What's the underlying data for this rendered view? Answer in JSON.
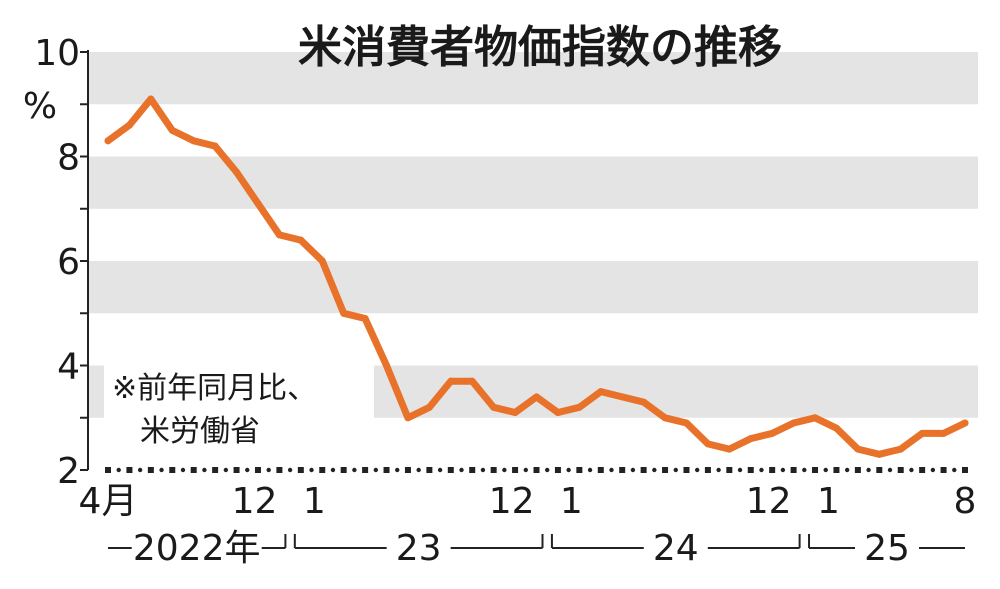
{
  "chart_data": {
    "type": "line",
    "title": "米消費者物価指数の推移",
    "ylabel": "%",
    "note_lines": [
      "※前年同月比、",
      "米労働省"
    ],
    "ylim": [
      2,
      10
    ],
    "y_ticks": [
      2,
      4,
      6,
      8,
      10
    ],
    "y_tick_labels": [
      "2",
      "4",
      "6",
      "8",
      "10"
    ],
    "grid": "shaded horizontal bands",
    "line_color": "#e8722a",
    "band_color": "#e4e4e4",
    "x_tick_labels": [
      {
        "text": "4月",
        "index": 0
      },
      {
        "text": "12",
        "index": 8
      },
      {
        "text": "1",
        "index": 9
      },
      {
        "text": "12",
        "index": 20
      },
      {
        "text": "1",
        "index": 21
      },
      {
        "text": "12",
        "index": 32
      },
      {
        "text": "1",
        "index": 33
      },
      {
        "text": "8",
        "index": 40
      }
    ],
    "year_labels": [
      {
        "text": "2022年",
        "start": 0,
        "end": 8
      },
      {
        "text": "23",
        "start": 9,
        "end": 20
      },
      {
        "text": "24",
        "start": 21,
        "end": 32
      },
      {
        "text": "25",
        "start": 33,
        "end": 40
      }
    ],
    "x": [
      "2022-04",
      "2022-05",
      "2022-06",
      "2022-07",
      "2022-08",
      "2022-09",
      "2022-10",
      "2022-11",
      "2022-12",
      "2023-01",
      "2023-02",
      "2023-03",
      "2023-04",
      "2023-05",
      "2023-06",
      "2023-07",
      "2023-08",
      "2023-09",
      "2023-10",
      "2023-11",
      "2023-12",
      "2024-01",
      "2024-02",
      "2024-03",
      "2024-04",
      "2024-05",
      "2024-06",
      "2024-07",
      "2024-08",
      "2024-09",
      "2024-10",
      "2024-11",
      "2024-12",
      "2025-01",
      "2025-02",
      "2025-03",
      "2025-04",
      "2025-05",
      "2025-06",
      "2025-07",
      "2025-08"
    ],
    "series": [
      {
        "values": [
          8.3,
          8.6,
          9.1,
          8.5,
          8.3,
          8.2,
          7.7,
          7.1,
          6.5,
          6.4,
          6.0,
          5.0,
          4.9,
          4.0,
          3.0,
          3.2,
          3.7,
          3.7,
          3.2,
          3.1,
          3.4,
          3.1,
          3.2,
          3.5,
          3.4,
          3.3,
          3.0,
          2.9,
          2.5,
          2.4,
          2.6,
          2.7,
          2.9,
          3.0,
          2.8,
          2.4,
          2.3,
          2.4,
          2.7,
          2.7,
          2.9
        ]
      }
    ]
  }
}
